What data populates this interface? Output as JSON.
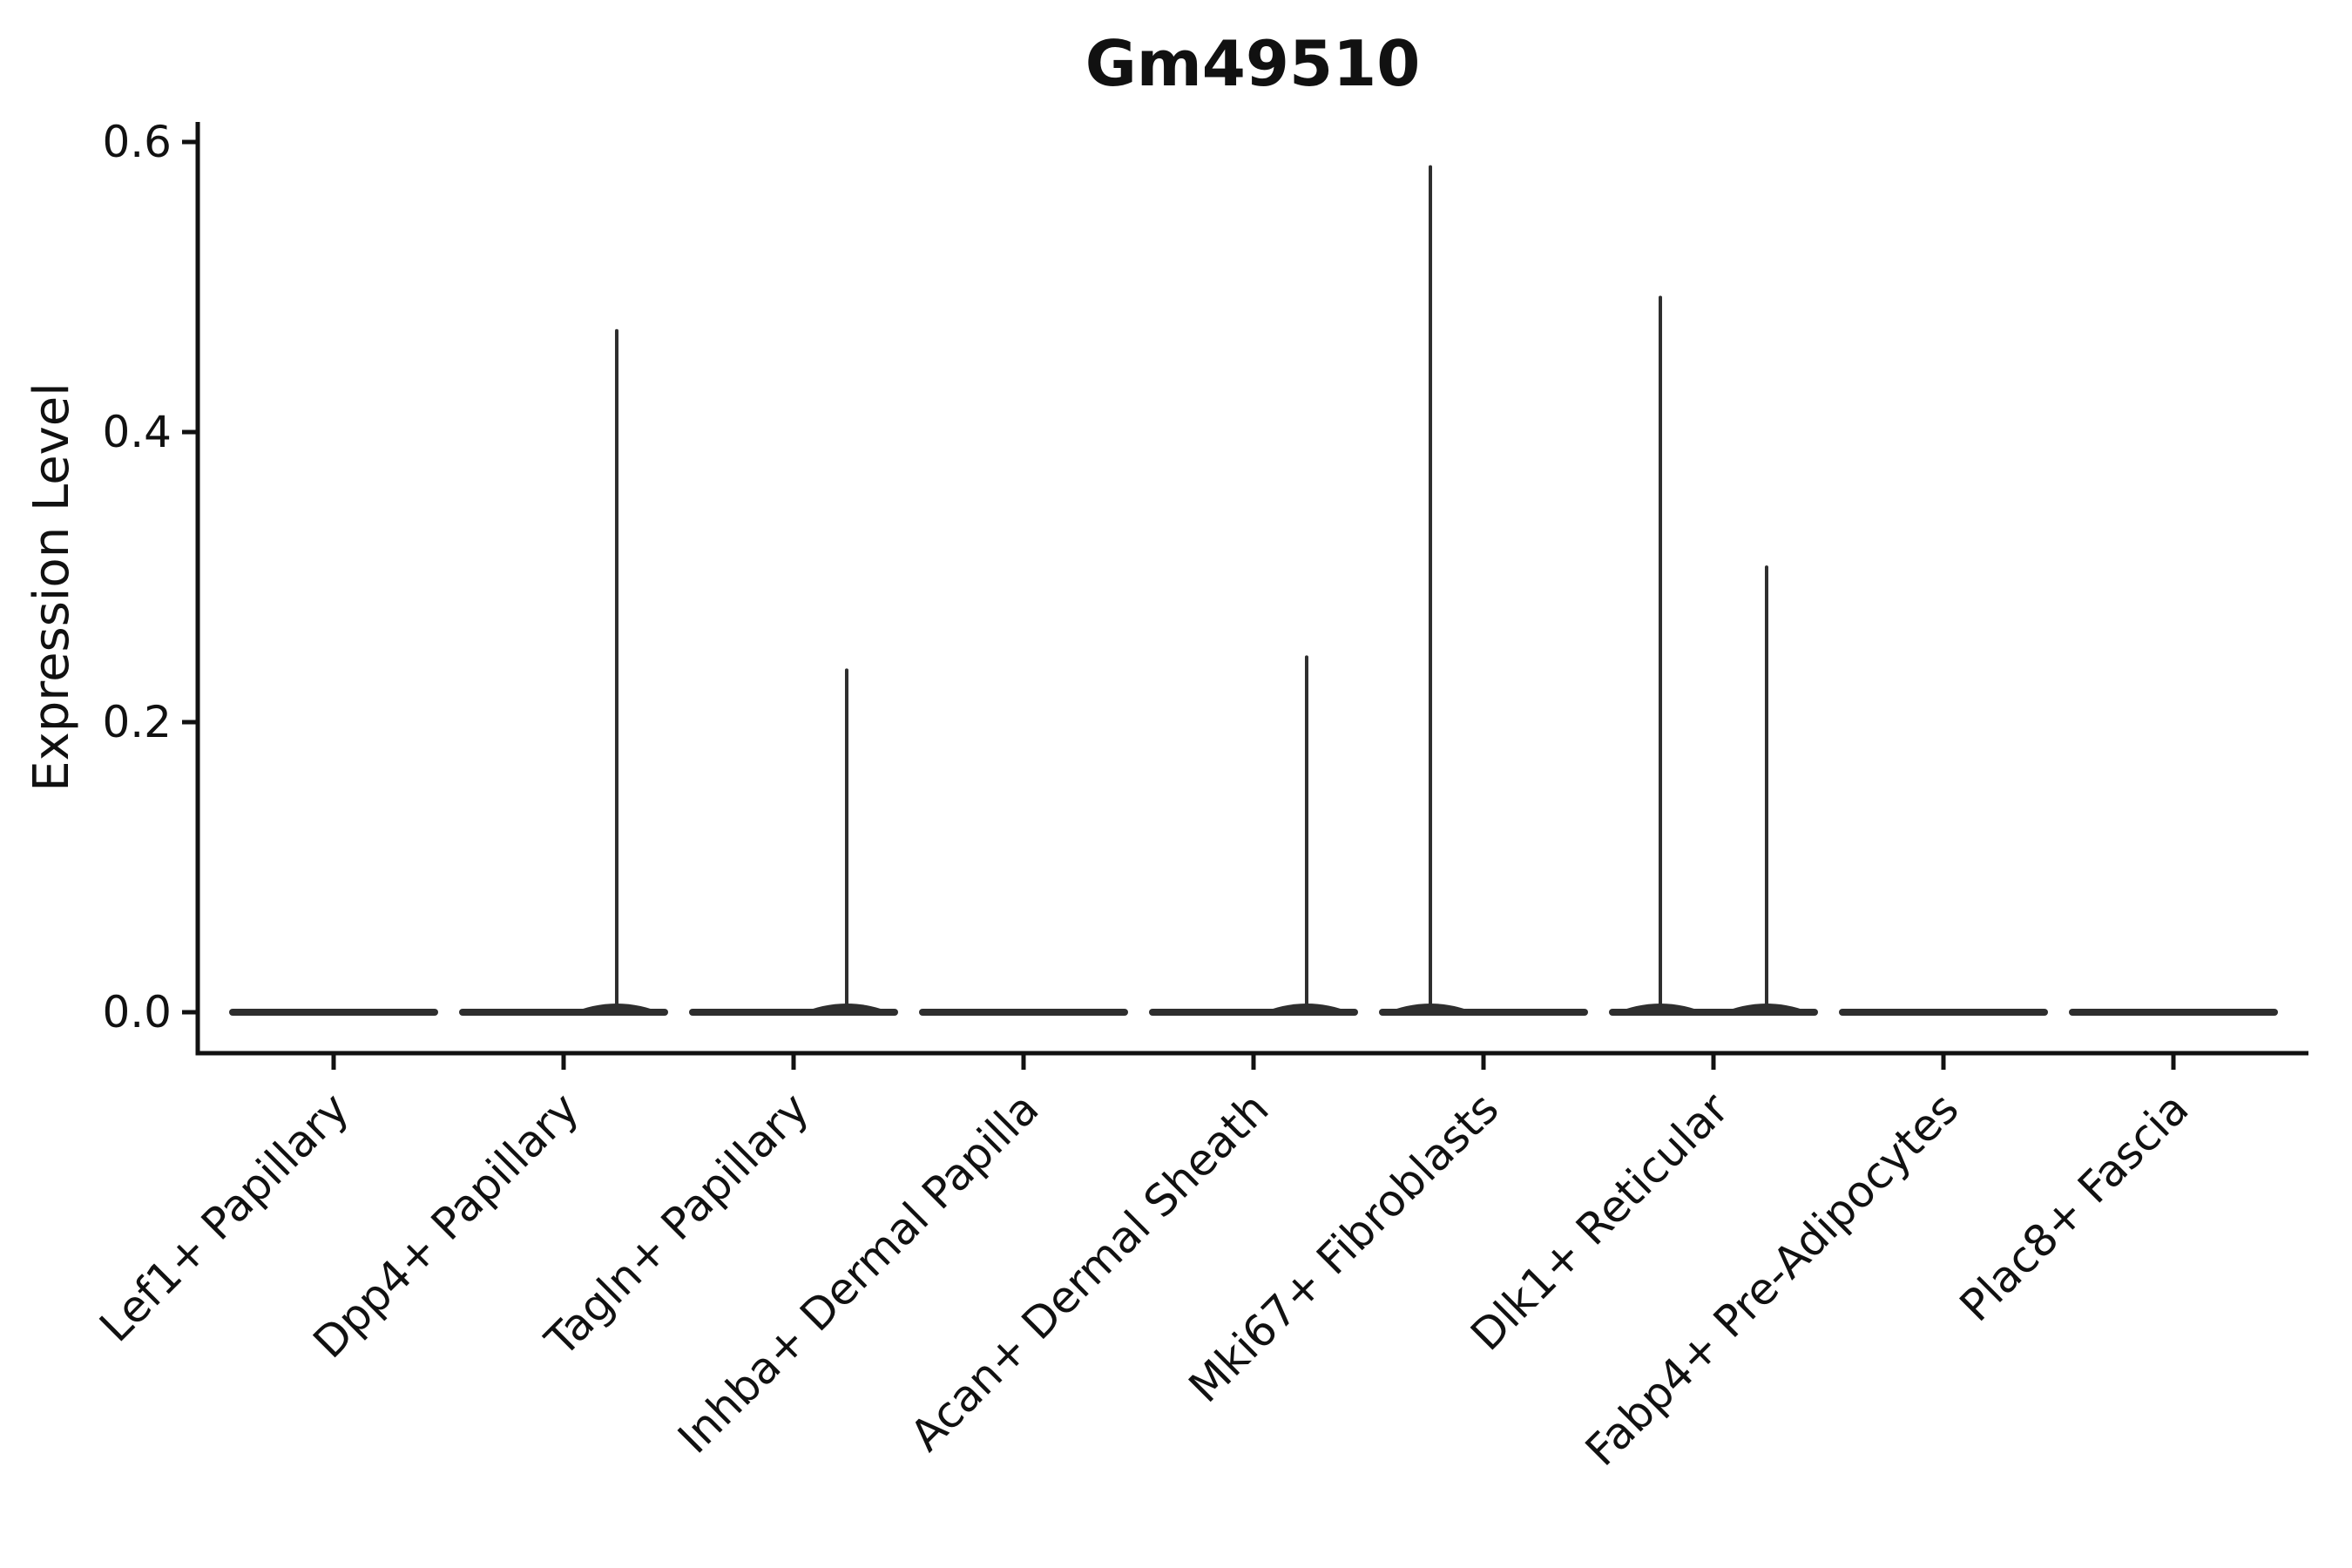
{
  "figure": {
    "background_color": "#ffffff",
    "ink_color": "#111111",
    "violin_color": "#2e2e2e"
  },
  "chart_data": {
    "type": "violin",
    "title": "Gm49510",
    "xlabel": "",
    "ylabel": "Expression Level",
    "ylim": [
      -0.028,
      0.614
    ],
    "yticks": [
      {
        "value": 0.0,
        "label": "0.0"
      },
      {
        "value": 0.2,
        "label": "0.2"
      },
      {
        "value": 0.4,
        "label": "0.4"
      },
      {
        "value": 0.6,
        "label": "0.6"
      }
    ],
    "grid": false,
    "legend_position": "none",
    "categories": [
      "Lef1+ Papillary",
      "Dpp4+ Papillary",
      "Tagln+ Papillary",
      "Inhba+ Dermal Papilla",
      "Acan+ Dermal Sheath",
      "Mki67+ Fibroblasts",
      "Dlk1+ Reticular",
      "Fabp4+ Pre-Adipocytes",
      "Plac8+ Fascia"
    ],
    "violins": [
      {
        "category": "Lef1+ Papillary",
        "baseline_value": 0.0,
        "spikes": []
      },
      {
        "category": "Dpp4+ Papillary",
        "baseline_value": 0.0,
        "spikes": [
          {
            "side": "right",
            "offset_frac": 0.231,
            "max_expression": 0.471
          }
        ]
      },
      {
        "category": "Tagln+ Papillary",
        "baseline_value": 0.0,
        "spikes": [
          {
            "side": "right",
            "offset_frac": 0.231,
            "max_expression": 0.237
          }
        ]
      },
      {
        "category": "Inhba+ Dermal Papilla",
        "baseline_value": 0.0,
        "spikes": []
      },
      {
        "category": "Acan+ Dermal Sheath",
        "baseline_value": 0.0,
        "spikes": [
          {
            "side": "right",
            "offset_frac": 0.231,
            "max_expression": 0.246
          }
        ]
      },
      {
        "category": "Mki67+ Fibroblasts",
        "baseline_value": 0.0,
        "spikes": [
          {
            "side": "left",
            "offset_frac": -0.231,
            "max_expression": 0.584
          }
        ]
      },
      {
        "category": "Dlk1+ Reticular",
        "baseline_value": 0.0,
        "spikes": [
          {
            "side": "left",
            "offset_frac": -0.231,
            "max_expression": 0.494
          },
          {
            "side": "right",
            "offset_frac": 0.231,
            "max_expression": 0.308
          }
        ]
      },
      {
        "category": "Fabp4+ Pre-Adipocytes",
        "baseline_value": 0.0,
        "spikes": []
      },
      {
        "category": "Plac8+ Fascia",
        "baseline_value": 0.0,
        "spikes": []
      }
    ],
    "x_tick_rotation_deg": 45
  }
}
